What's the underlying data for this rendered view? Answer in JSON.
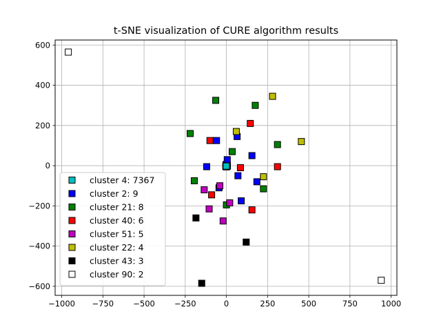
{
  "chart_data": {
    "type": "scatter",
    "title": "t-SNE visualization of CURE algorithm results",
    "xlabel": "",
    "ylabel": "",
    "xlim": [
      -1040,
      1035
    ],
    "ylim": [
      -645,
      625
    ],
    "grid": true,
    "legend_position": "lower-left",
    "x_ticks": [
      -1000,
      -750,
      -500,
      -250,
      0,
      250,
      500,
      750,
      1000
    ],
    "x_tick_labels": [
      "−1000",
      "−750",
      "−500",
      "−250",
      "0",
      "250",
      "500",
      "750",
      "1000"
    ],
    "y_ticks": [
      600,
      400,
      200,
      0,
      -200,
      -400,
      -600
    ],
    "y_tick_labels": [
      "600",
      "400",
      "200",
      "0",
      "−200",
      "−400",
      "−600"
    ],
    "series": [
      {
        "name": "cluster 4: 7367",
        "color": "#00bfbf",
        "points": [
          [
            0,
            0
          ],
          [
            -2,
            5
          ],
          [
            3,
            -3
          ],
          [
            5,
            2
          ],
          [
            -4,
            -4
          ],
          [
            2,
            6
          ],
          [
            0,
            -6
          ],
          [
            4,
            8
          ],
          [
            -3,
            2
          ],
          [
            6,
            -2
          ],
          [
            1,
            3
          ],
          [
            -1,
            -2
          ]
        ]
      },
      {
        "name": "cluster 2: 9",
        "color": "#0000ff",
        "points": [
          [
            -60,
            125
          ],
          [
            65,
            145
          ],
          [
            -120,
            -5
          ],
          [
            5,
            30
          ],
          [
            155,
            50
          ],
          [
            70,
            -50
          ],
          [
            185,
            -80
          ],
          [
            -45,
            -110
          ],
          [
            90,
            -175
          ]
        ]
      },
      {
        "name": "cluster 21: 8",
        "color": "#008000",
        "points": [
          [
            -65,
            325
          ],
          [
            175,
            300
          ],
          [
            -220,
            160
          ],
          [
            310,
            105
          ],
          [
            35,
            70
          ],
          [
            -195,
            -75
          ],
          [
            225,
            -115
          ],
          [
            0,
            -195
          ]
        ]
      },
      {
        "name": "cluster 40: 6",
        "color": "#ff0000",
        "points": [
          [
            145,
            210
          ],
          [
            -100,
            125
          ],
          [
            85,
            -10
          ],
          [
            310,
            -5
          ],
          [
            -90,
            -145
          ],
          [
            155,
            -220
          ]
        ]
      },
      {
        "name": "cluster 51: 5",
        "color": "#bf00bf",
        "points": [
          [
            -40,
            -100
          ],
          [
            -135,
            -120
          ],
          [
            20,
            -185
          ],
          [
            -105,
            -215
          ],
          [
            -20,
            -275
          ]
        ]
      },
      {
        "name": "cluster 22: 4",
        "color": "#bfbf00",
        "points": [
          [
            280,
            345
          ],
          [
            60,
            170
          ],
          [
            455,
            120
          ],
          [
            225,
            -55
          ]
        ]
      },
      {
        "name": "cluster 43: 3",
        "color": "#000000",
        "points": [
          [
            -185,
            -260
          ],
          [
            120,
            -380
          ],
          [
            -150,
            -585
          ]
        ]
      },
      {
        "name": "cluster 90: 2",
        "color": "#ffffff",
        "points": [
          [
            -960,
            565
          ],
          [
            940,
            -570
          ]
        ]
      }
    ]
  }
}
